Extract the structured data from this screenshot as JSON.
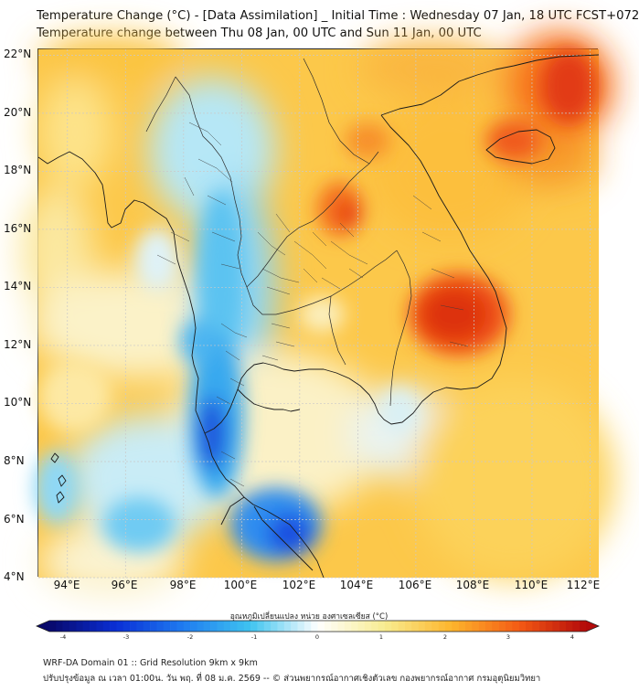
{
  "header": {
    "title_line1": "Temperature Change (°C) - [Data Assimilation] _ Initial Time : Wednesday 07 Jan, 18 UTC FCST+072",
    "title_line2": "Temperature change between Thu 08 Jan, 00 UTC and Sun 11 Jan, 00 UTC"
  },
  "map": {
    "lat_labels": [
      "22°N",
      "20°N",
      "18°N",
      "16°N",
      "14°N",
      "12°N",
      "10°N",
      "8°N",
      "6°N",
      "4°N"
    ],
    "lon_labels": [
      "94°E",
      "96°E",
      "98°E",
      "100°E",
      "102°E",
      "104°E",
      "106°E",
      "108°E",
      "110°E",
      "112°E"
    ],
    "lat_range": [
      4,
      22.2
    ],
    "lon_range": [
      93,
      112.3
    ]
  },
  "colorbar": {
    "title": "อุณหภูมิเปลี่ยนแปลง หน่วย องศาเซลเซียส (°C)",
    "ticks": [
      "-4",
      "-3",
      "-2",
      "-1",
      "0",
      "1",
      "2",
      "3",
      "4"
    ],
    "range": [
      -4,
      4
    ],
    "colors": [
      "#08086b",
      "#0a2fd6",
      "#1f7cf0",
      "#3fc4f0",
      "#ffffff",
      "#f8ec90",
      "#fdb52c",
      "#f45a14",
      "#b30a0a"
    ]
  },
  "footer": {
    "line1": "WRF-DA Domain 01 :: Grid Resolution 9km x 9km",
    "line2": "ปรับปรุงข้อมูล ณ เวลา 01:00น. วัน พฤ. ที่ 08 ม.ค. 2569 -- © ส่วนพยากรณ์อากาศเชิงตัวเลข กองพยากรณ์อากาศ กรมอุตุนิยมวิทยา"
  }
}
